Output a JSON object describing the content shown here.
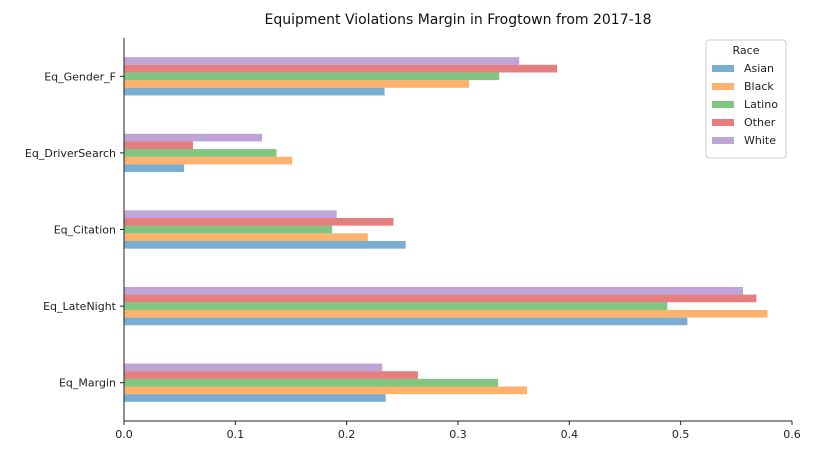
{
  "chart_data": {
    "type": "bar",
    "orientation": "horizontal",
    "title": "Equipment Violations Margin in Frogtown from 2017-18",
    "xlabel": "",
    "ylabel": "",
    "xlim": [
      0,
      0.6
    ],
    "xticks": [
      "0.0",
      "0.1",
      "0.2",
      "0.3",
      "0.4",
      "0.5",
      "0.6"
    ],
    "categories": [
      "Eq_Margin",
      "Eq_LateNight",
      "Eq_Citation",
      "Eq_DriverSearch",
      "Eq_Gender_F"
    ],
    "legend": {
      "title": "Race",
      "placement": "top-right"
    },
    "grid": false,
    "series": [
      {
        "name": "Asian",
        "color": "#1f77b4",
        "values": [
          0.235,
          0.506,
          0.253,
          0.054,
          0.234
        ]
      },
      {
        "name": "Black",
        "color": "#ff7f0e",
        "values": [
          0.362,
          0.578,
          0.219,
          0.151,
          0.31
        ]
      },
      {
        "name": "Latino",
        "color": "#2ca02c",
        "values": [
          0.336,
          0.488,
          0.187,
          0.137,
          0.337
        ]
      },
      {
        "name": "Other",
        "color": "#d62728",
        "values": [
          0.264,
          0.568,
          0.242,
          0.062,
          0.389
        ]
      },
      {
        "name": "White",
        "color": "#9467bd",
        "values": [
          0.232,
          0.556,
          0.191,
          0.124,
          0.355
        ]
      }
    ]
  }
}
